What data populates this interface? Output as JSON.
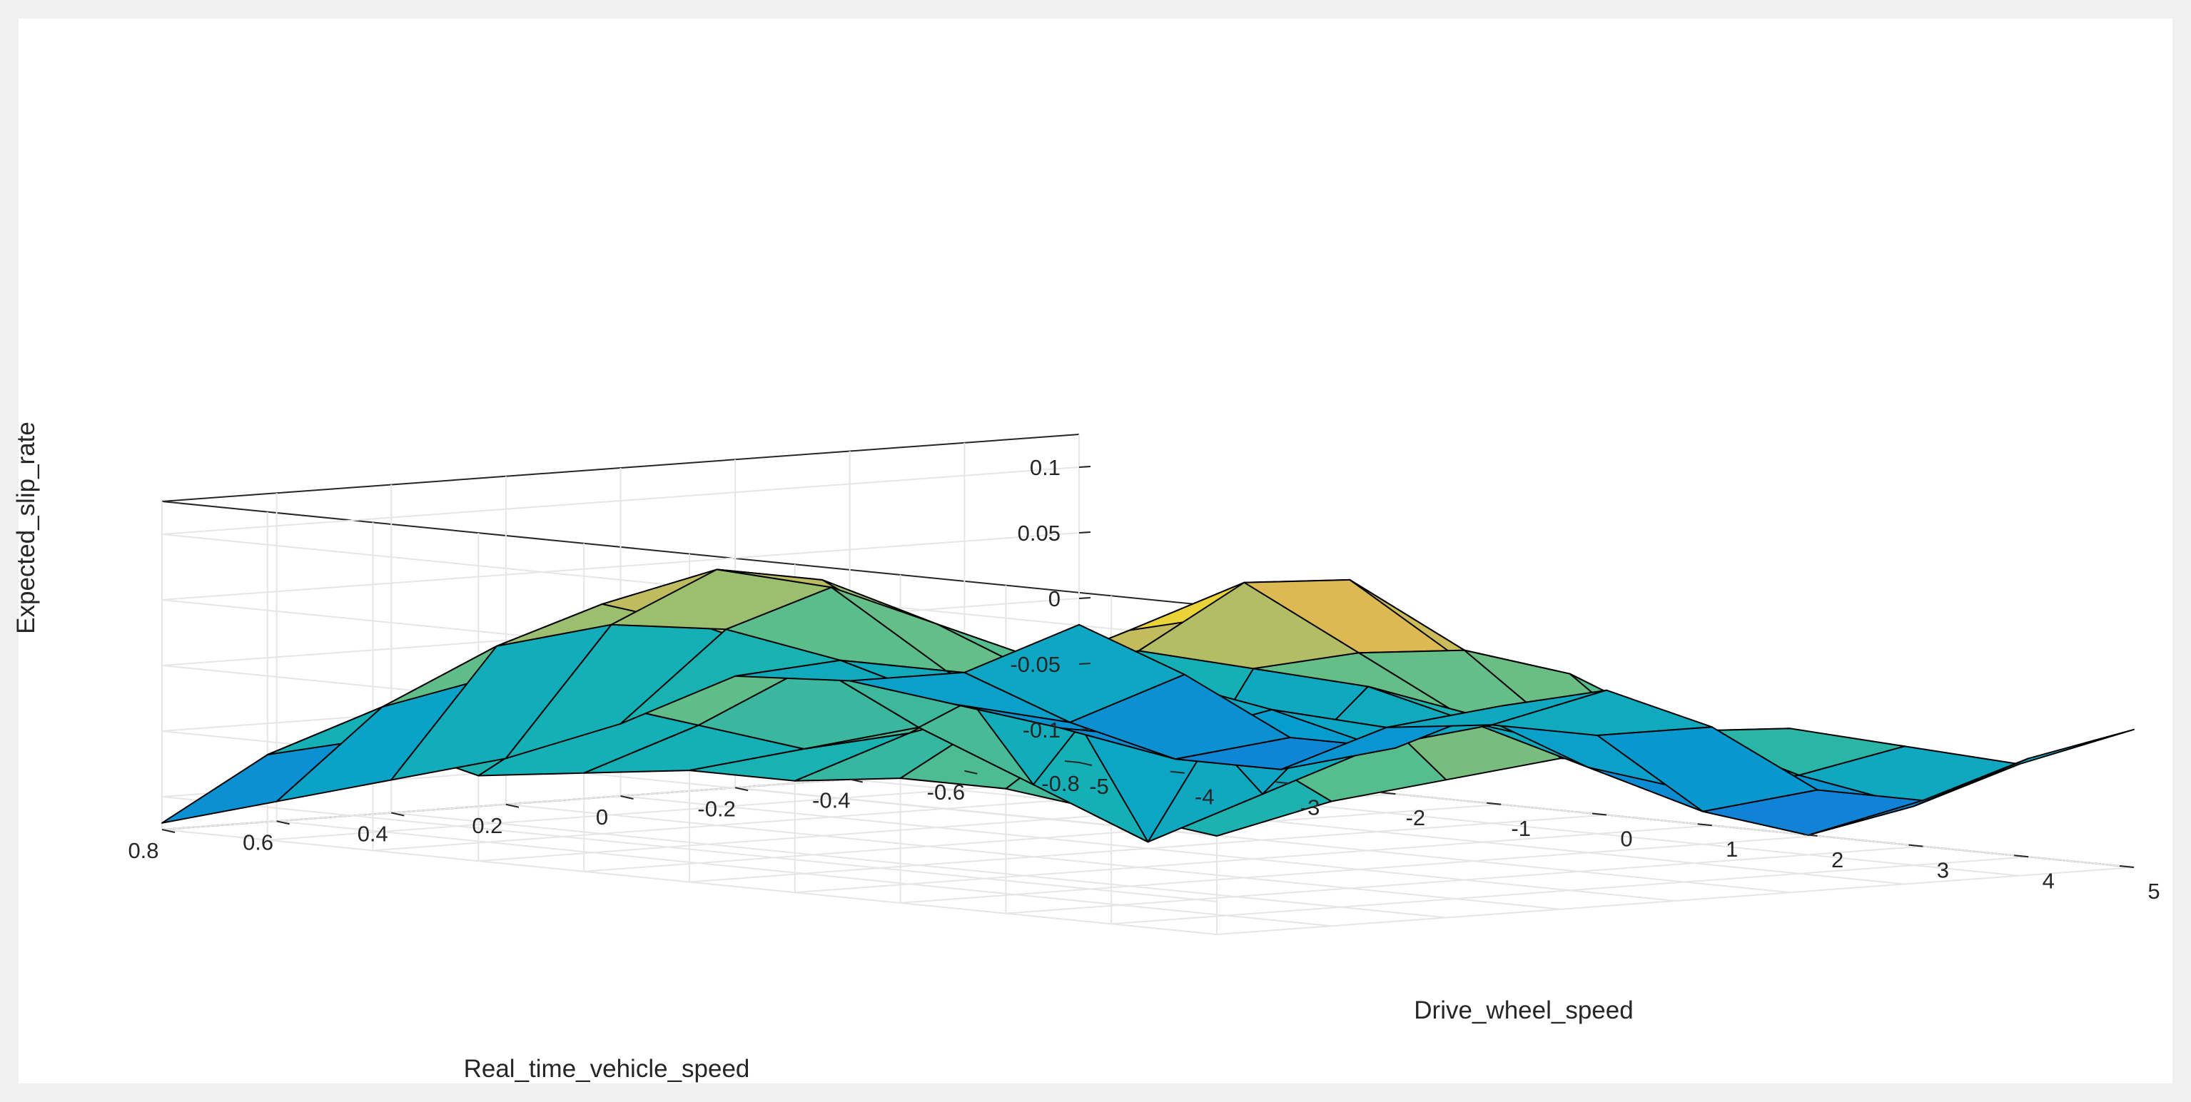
{
  "chart_data": {
    "type": "surface",
    "xlabel": "Drive_wheel_speed",
    "ylabel": "Real_time_vehicle_speed",
    "zlabel": "Expected_slip_rate",
    "xlim": [
      -5,
      5
    ],
    "ylim": [
      -0.8,
      0.8
    ],
    "zlim": [
      -0.125,
      0.125
    ],
    "x_ticks": [
      -5,
      -4,
      -3,
      -2,
      -1,
      0,
      1,
      2,
      3,
      4,
      5
    ],
    "x_tick_labels": [
      "-5",
      "-4",
      "-3",
      "-2",
      "-1",
      "0",
      "1",
      "2",
      "3",
      "4",
      "5"
    ],
    "y_ticks": [
      -0.8,
      -0.6,
      -0.4,
      -0.2,
      0,
      0.2,
      0.4,
      0.6,
      0.8
    ],
    "y_tick_labels": [
      "-0.8",
      "-0.6",
      "-0.4",
      "-0.2",
      "0",
      "0.2",
      "0.4",
      "0.6",
      "0.8"
    ],
    "z_ticks": [
      -0.1,
      -0.05,
      0,
      0.05,
      0.1
    ],
    "z_tick_labels": [
      "-0.1",
      "-0.05",
      "0",
      "0.05",
      "0.1"
    ],
    "grid": true,
    "colormap": "parula",
    "grid_x": [
      -5,
      -4,
      -3,
      -2,
      -1,
      0,
      1,
      2,
      3,
      4,
      5
    ],
    "grid_y": [
      -0.8,
      -0.6,
      -0.4,
      -0.2,
      0,
      0.2,
      0.4,
      0.6,
      0.8
    ],
    "z": [
      [
        -0.02,
        -0.05,
        -0.09,
        -0.09,
        -0.05,
        -0.03,
        -0.05,
        -0.09,
        -0.09,
        -0.05,
        -0.02
      ],
      [
        -0.05,
        -0.08,
        -0.1,
        -0.1,
        -0.06,
        -0.05,
        -0.05,
        -0.1,
        -0.11,
        -0.08,
        -0.04
      ],
      [
        -0.05,
        -0.06,
        -0.07,
        -0.07,
        -0.04,
        -0.06,
        -0.03,
        -0.06,
        -0.07,
        -0.05,
        -0.02
      ],
      [
        -0.04,
        -0.02,
        -0.02,
        -0.02,
        -0.01,
        -0.09,
        0.0,
        -0.02,
        -0.03,
        -0.01,
        0.0
      ],
      [
        -0.07,
        0.01,
        0.05,
        0.03,
        0.01,
        -0.12,
        0.02,
        0.04,
        0.05,
        0.04,
        -0.02
      ],
      [
        -0.09,
        0.02,
        0.07,
        0.07,
        0.03,
        -0.07,
        0.04,
        0.1,
        0.11,
        0.06,
        -0.01
      ],
      [
        -0.1,
        0.01,
        0.05,
        0.04,
        0.02,
        -0.02,
        0.03,
        0.07,
        0.09,
        0.05,
        -0.02
      ],
      [
        -0.11,
        -0.03,
        0.0,
        -0.01,
        -0.02,
        -0.03,
        -0.01,
        0.02,
        0.03,
        0.01,
        -0.03
      ],
      [
        -0.12,
        -0.06,
        -0.04,
        -0.06,
        -0.05,
        -0.04,
        -0.04,
        -0.03,
        -0.03,
        -0.04,
        -0.05
      ]
    ]
  }
}
